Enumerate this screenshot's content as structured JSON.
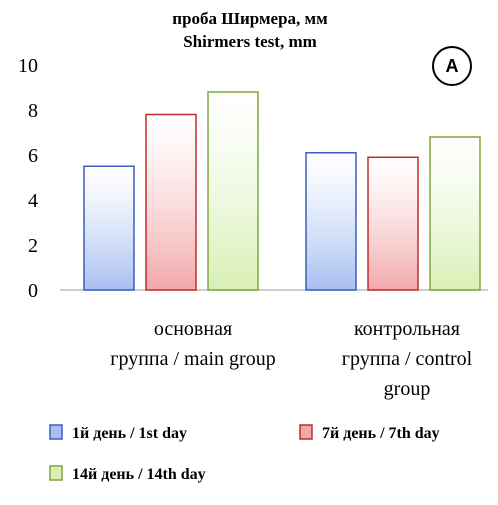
{
  "chart_data": {
    "type": "bar",
    "title": "проба Ширмера, мм",
    "subtitle": "Shirmers test, mm",
    "badge": "A",
    "categories": [
      [
        "основная",
        "группа / main group"
      ],
      [
        "контрольная",
        "группа / control",
        "group"
      ]
    ],
    "series": [
      {
        "name": "1й день / 1st day",
        "values": [
          5.5,
          6.1
        ],
        "color": "#a7bff2",
        "stroke": "#3a5fc0"
      },
      {
        "name": "7й день / 7th day",
        "values": [
          7.8,
          5.9
        ],
        "color": "#f2a8aa",
        "stroke": "#c02d2d"
      },
      {
        "name": "14й день / 14th day",
        "values": [
          8.8,
          6.8
        ],
        "color": "#d8efb6",
        "stroke": "#7ea83f"
      }
    ],
    "ylim": [
      0,
      10
    ],
    "yticks": [
      "0",
      "2",
      "4",
      "6",
      "8",
      "10"
    ],
    "grid": false,
    "legend_position": "bottom"
  }
}
